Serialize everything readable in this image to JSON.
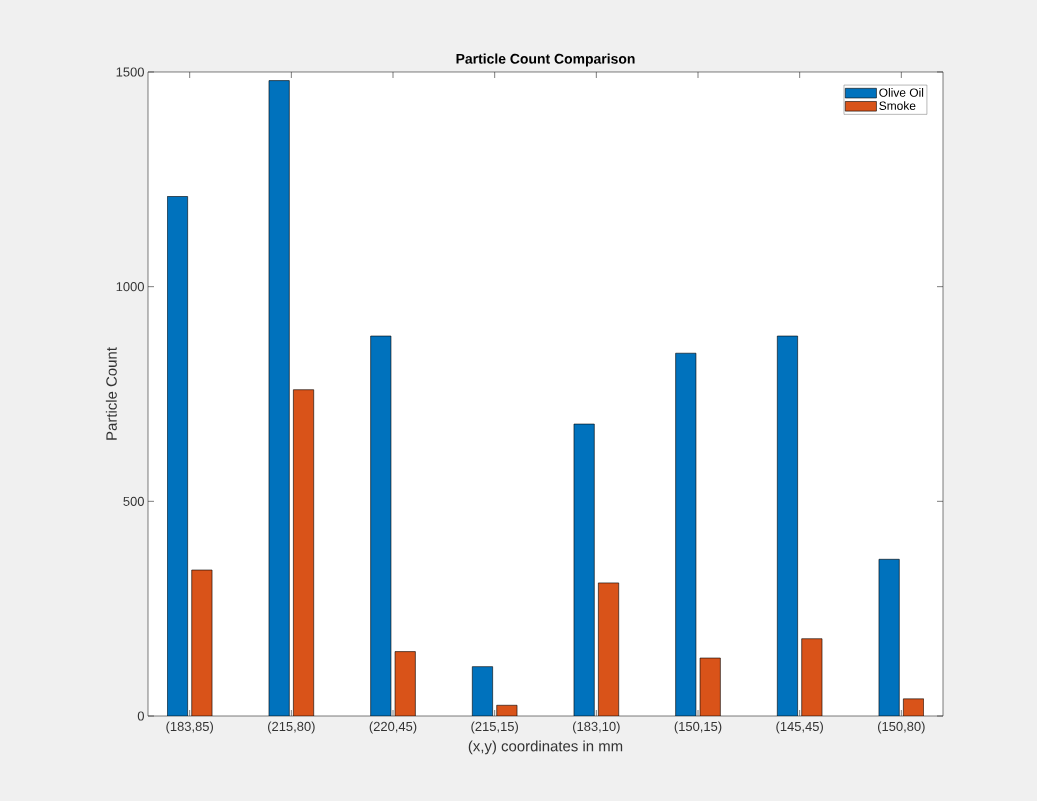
{
  "chart_data": {
    "type": "bar",
    "title": "Particle Count Comparison",
    "xlabel": "(x,y) coordinates in mm",
    "ylabel": "Particle Count",
    "categories": [
      "(183,85)",
      "(215,80)",
      "(220,45)",
      "(215,15)",
      "(183,10)",
      "(150,15)",
      "(145,45)",
      "(150,80)"
    ],
    "series": [
      {
        "name": "Olive Oil",
        "color": "#0072bd",
        "values": [
          1210,
          1480,
          885,
          115,
          680,
          845,
          885,
          365
        ]
      },
      {
        "name": "Smoke",
        "color": "#d95319",
        "values": [
          340,
          760,
          150,
          25,
          310,
          135,
          180,
          40
        ]
      }
    ],
    "ylim": [
      0,
      1500
    ],
    "yticks": [
      0,
      500,
      1000,
      1500
    ],
    "legend": "top right"
  }
}
